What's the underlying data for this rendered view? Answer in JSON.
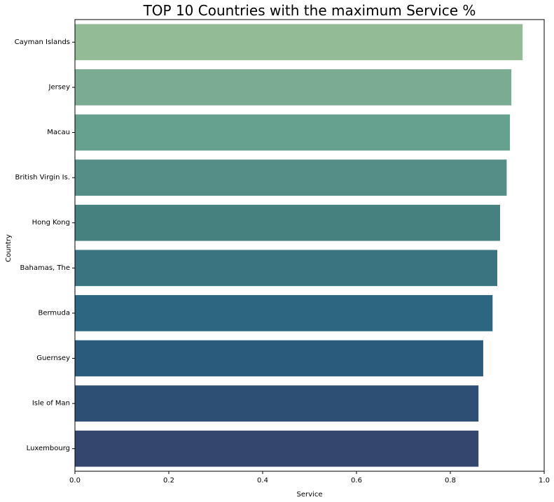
{
  "chart_data": {
    "type": "bar",
    "orientation": "horizontal",
    "title": "TOP 10 Countries with the maximum Service %",
    "xlabel": "Service",
    "ylabel": "Country",
    "xlim": [
      0,
      1.0
    ],
    "xticks": [
      "0.0",
      "0.2",
      "0.4",
      "0.6",
      "0.8",
      "1.0"
    ],
    "grid": false,
    "categories": [
      "Cayman Islands",
      "Jersey",
      "Macau",
      "British Virgin Is.",
      "Hong Kong",
      "Bahamas, The",
      "Bermuda",
      "Guernsey",
      "Isle of Man",
      "Luxembourg"
    ],
    "values": [
      0.954,
      0.93,
      0.927,
      0.92,
      0.906,
      0.9,
      0.89,
      0.87,
      0.86,
      0.86
    ],
    "colors": [
      "#93bb95",
      "#7bac93",
      "#66a08e",
      "#548e86",
      "#47817f",
      "#3a7480",
      "#2c6680",
      "#2a5b7c",
      "#2e4f74",
      "#34466e"
    ]
  }
}
